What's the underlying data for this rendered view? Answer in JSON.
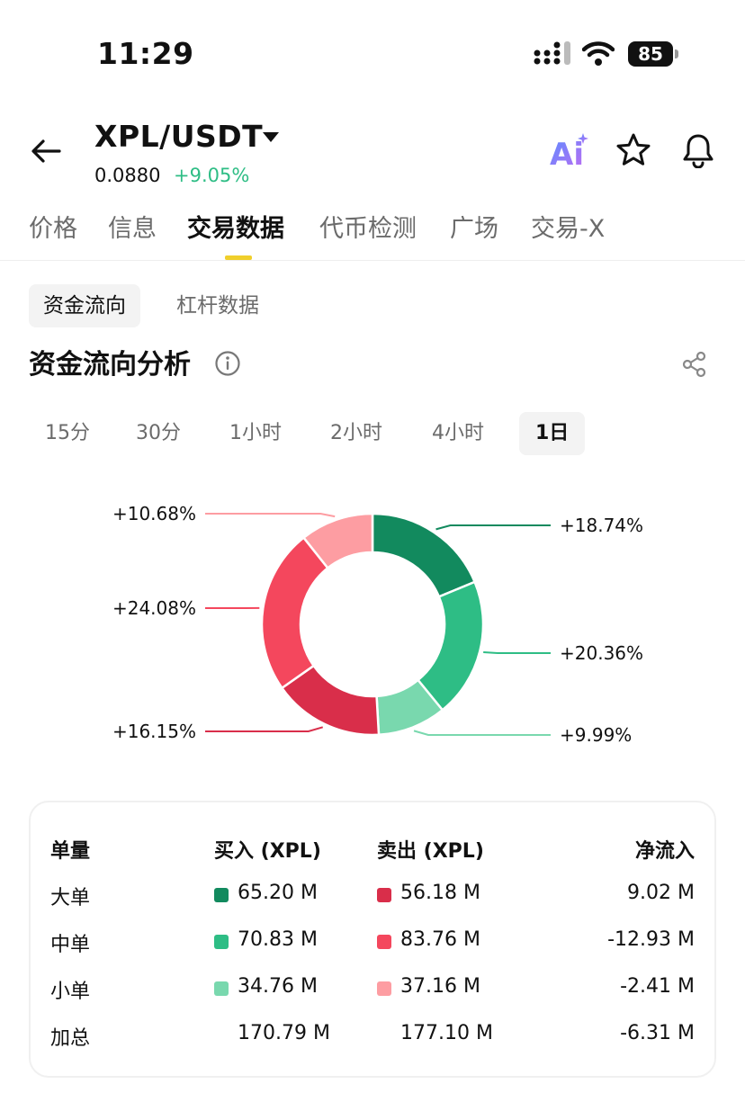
{
  "status_bar": {
    "time": "11:29",
    "battery": "85"
  },
  "header": {
    "pair": "XPL/USDT",
    "price": "0.0880",
    "change": "+9.05%",
    "ai_label": "Ai"
  },
  "tabs": [
    "价格",
    "信息",
    "交易数据",
    "代币检测",
    "广场",
    "交易-X"
  ],
  "active_tab": "交易数据",
  "subtabs": [
    "资金流向",
    "杠杆数据"
  ],
  "section": {
    "title": "资金流向分析"
  },
  "periods": [
    "15分",
    "30分",
    "1小时",
    "2小时",
    "4小时",
    "1日"
  ],
  "active_period": "1日",
  "colors": {
    "large_buy": "#128a5e",
    "medium_buy": "#2ebd85",
    "small_buy": "#79d8ae",
    "large_sell": "#d92e4a",
    "medium_sell": "#f4475d",
    "small_sell": "#fd9da2",
    "accent_yellow": "#f0cf2b",
    "up_green": "#2ebd85"
  },
  "chart_data": {
    "type": "pie",
    "donut": true,
    "slices": [
      {
        "label": "+18.74%",
        "value": 18.74,
        "color": "#128a5e"
      },
      {
        "label": "+20.36%",
        "value": 20.36,
        "color": "#2ebd85"
      },
      {
        "label": "+9.99%",
        "value": 9.99,
        "color": "#79d8ae"
      },
      {
        "label": "+16.15%",
        "value": 16.15,
        "color": "#d92e4a"
      },
      {
        "label": "+24.08%",
        "value": 24.08,
        "color": "#f4475d"
      },
      {
        "label": "+10.68%",
        "value": 10.68,
        "color": "#fd9da2"
      }
    ]
  },
  "table": {
    "headers": [
      "单量",
      "买入 (XPL)",
      "卖出 (XPL)",
      "净流入"
    ],
    "rows": [
      {
        "label": "大单",
        "buy": "65.20 M",
        "sell": "56.18 M",
        "net": "9.02 M",
        "buy_color": "#128a5e",
        "sell_color": "#d92e4a"
      },
      {
        "label": "中单",
        "buy": "70.83 M",
        "sell": "83.76 M",
        "net": "-12.93 M",
        "buy_color": "#2ebd85",
        "sell_color": "#f4475d"
      },
      {
        "label": "小单",
        "buy": "34.76 M",
        "sell": "37.16 M",
        "net": "-2.41 M",
        "buy_color": "#79d8ae",
        "sell_color": "#fd9da2"
      }
    ],
    "total": {
      "label": "加总",
      "buy": "170.79 M",
      "sell": "177.10 M",
      "net": "-6.31 M"
    }
  }
}
